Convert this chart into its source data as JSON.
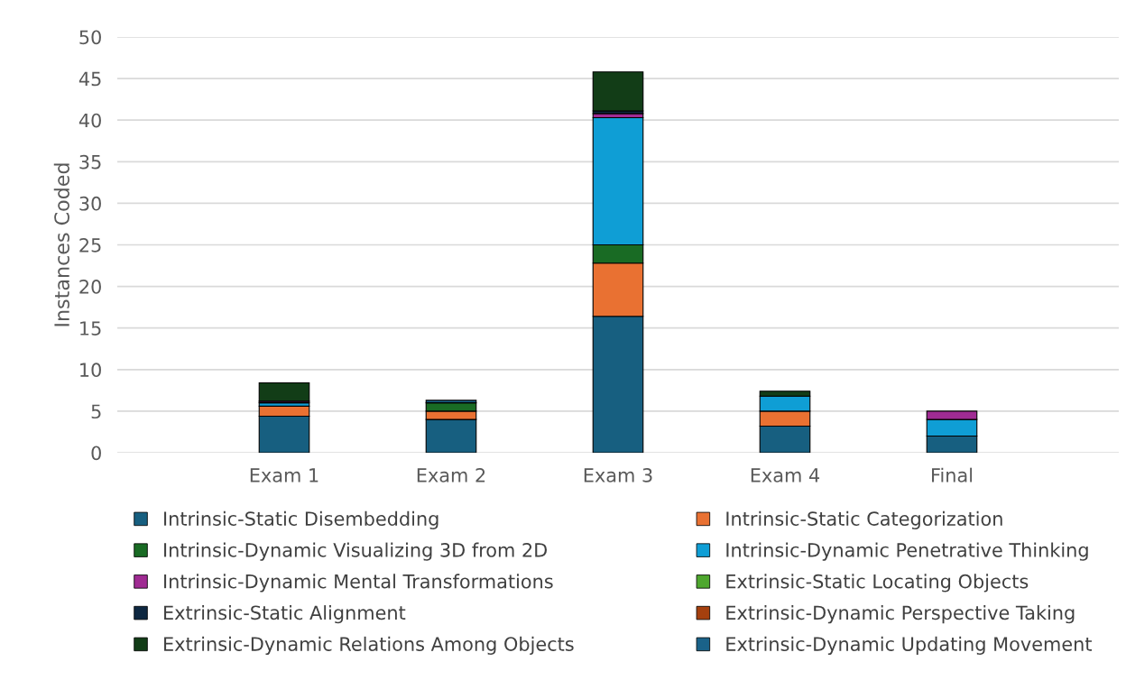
{
  "chart_data": {
    "type": "bar",
    "stacked": true,
    "ylabel": "Instances Coded",
    "categories": [
      "Exam 1",
      "Exam 2",
      "Exam 3",
      "Exam 4",
      "Final"
    ],
    "ylim": [
      0,
      50
    ],
    "yticks": [
      0,
      5,
      10,
      15,
      20,
      25,
      30,
      35,
      40,
      45,
      50
    ],
    "grid": "y",
    "legend": "bottom",
    "series": [
      {
        "name": "Intrinsic-Static Disembedding",
        "color": "#175f80",
        "values": [
          4.4,
          4.0,
          16.4,
          3.2,
          2.0
        ]
      },
      {
        "name": "Intrinsic-Static Categorization",
        "color": "#e97132",
        "values": [
          1.2,
          1.0,
          6.4,
          1.8,
          null
        ]
      },
      {
        "name": "Intrinsic-Dynamic Visualizing 3D from 2D",
        "color": "#196b24",
        "values": [
          null,
          1.0,
          2.2,
          null,
          null
        ]
      },
      {
        "name": "Intrinsic-Dynamic Penetrative Thinking",
        "color": "#0f9ed5",
        "values": [
          0.4,
          null,
          15.3,
          1.8,
          2.0
        ]
      },
      {
        "name": "Intrinsic-Dynamic Mental Transformations",
        "color": "#a02b93",
        "values": [
          0.2,
          null,
          0.5,
          null,
          1.0
        ]
      },
      {
        "name": "Extrinsic-Static Locating Objects",
        "color": "#4ea72e",
        "values": [
          null,
          null,
          null,
          null,
          null
        ]
      },
      {
        "name": "Extrinsic-Static Alignment",
        "color": "#0e2841",
        "values": [
          null,
          null,
          0.3,
          null,
          null
        ]
      },
      {
        "name": "Extrinsic-Dynamic Perspective Taking",
        "color": "#a5400e",
        "values": [
          null,
          null,
          null,
          null,
          null
        ]
      },
      {
        "name": "Extrinsic-Dynamic Relations Among Objects",
        "color": "#123d17",
        "values": [
          2.2,
          null,
          4.7,
          0.6,
          null
        ]
      },
      {
        "name": "Extrinsic-Dynamic Updating Movement",
        "color": "#1a6289",
        "values": [
          null,
          0.3,
          null,
          null,
          null
        ]
      }
    ]
  }
}
